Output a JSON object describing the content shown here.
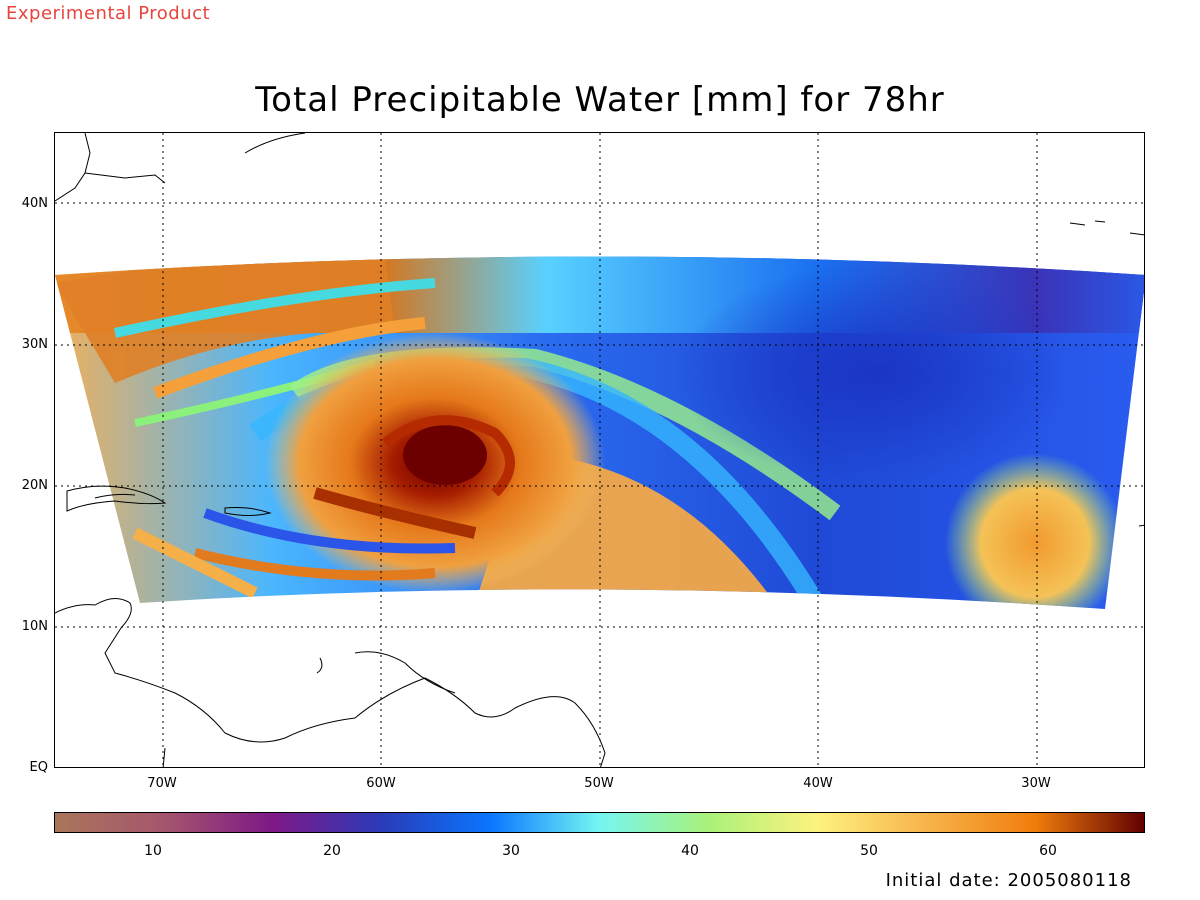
{
  "header": {
    "watermark": "Experimental Product",
    "watermark_color": "#e8453c",
    "title": "Total Precipitable Water [mm] for 78hr"
  },
  "map": {
    "lat_labels": [
      "40N",
      "30N",
      "20N",
      "10N",
      "EQ"
    ],
    "lon_labels": [
      "70W",
      "60W",
      "50W",
      "40W",
      "30W"
    ],
    "lat_range": [
      0,
      45
    ],
    "lon_range": [
      -75,
      -25
    ],
    "feature": "tropical-cyclone-moisture-swirl"
  },
  "colorbar": {
    "range": [
      5,
      66
    ],
    "tick_labels": [
      "10",
      "20",
      "30",
      "40",
      "50",
      "60"
    ],
    "colors": [
      "#a9755a",
      "#a5566e",
      "#7e1887",
      "#2a3bb8",
      "#0a76ff",
      "#76f6f2",
      "#a9f27a",
      "#fef27e",
      "#f7b44c",
      "#f07d0c",
      "#620000"
    ]
  },
  "footer": {
    "initial_date": "Initial date: 2005080118"
  }
}
